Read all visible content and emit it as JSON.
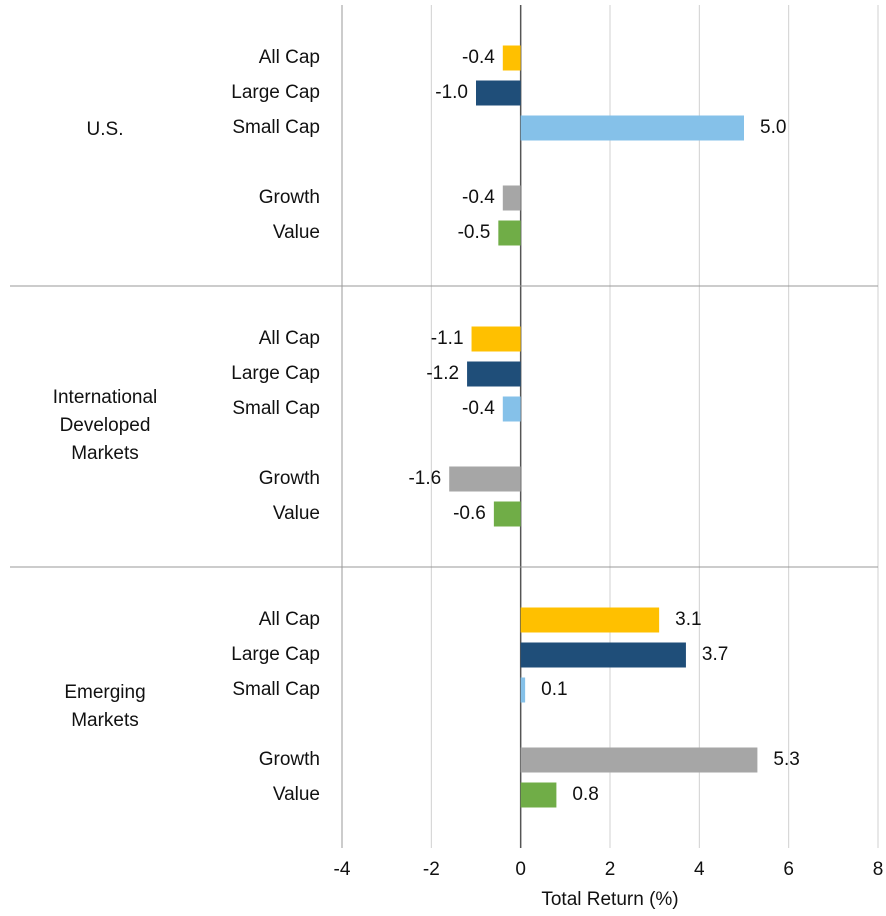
{
  "chart_data": {
    "type": "bar",
    "orientation": "horizontal",
    "xlabel": "Total Return (%)",
    "xlim": [
      -4,
      8
    ],
    "xticks": [
      -4,
      -2,
      0,
      2,
      4,
      6,
      8
    ],
    "grid": true,
    "colors": [
      "#FFC000",
      "#1F4E79",
      "#85C1E9",
      "#A6A6A6",
      "#70AD47"
    ],
    "groups": [
      {
        "name": "U.S.",
        "categories": [
          "All Cap",
          "Large Cap",
          "Small Cap",
          "Growth",
          "Value"
        ],
        "values": [
          -0.4,
          -1.0,
          5.0,
          -0.4,
          -0.5
        ],
        "value_labels": [
          "-0.4",
          "-1.0",
          "5.0",
          "-0.4",
          "-0.5"
        ]
      },
      {
        "name": "International Developed Markets",
        "categories": [
          "All Cap",
          "Large Cap",
          "Small Cap",
          "Growth",
          "Value"
        ],
        "values": [
          -1.1,
          -1.2,
          -0.4,
          -1.6,
          -0.6
        ],
        "value_labels": [
          "-1.1",
          "-1.2",
          "-0.4",
          "-1.6",
          "-0.6"
        ]
      },
      {
        "name": "Emerging Markets",
        "categories": [
          "All Cap",
          "Large Cap",
          "Small Cap",
          "Growth",
          "Value"
        ],
        "values": [
          3.1,
          3.7,
          0.1,
          5.3,
          0.8
        ],
        "value_labels": [
          "3.1",
          "3.7",
          "0.1",
          "5.3",
          "0.8"
        ]
      }
    ]
  }
}
